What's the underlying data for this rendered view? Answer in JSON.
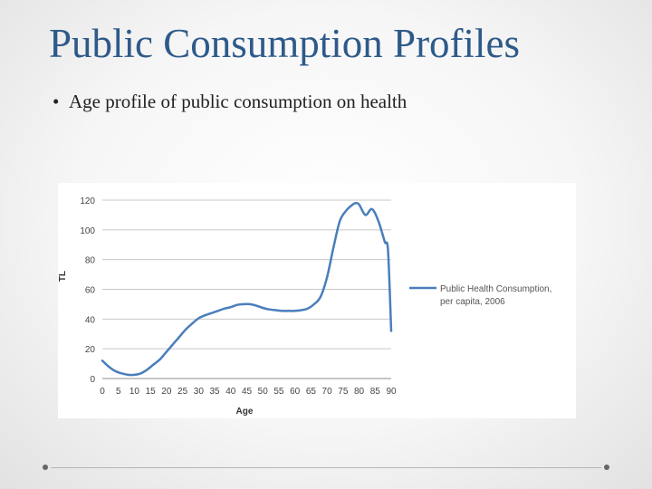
{
  "slide": {
    "title": "Public Consumption Profiles",
    "bullets": [
      "Age profile of public consumption on health"
    ]
  },
  "chart_data": {
    "type": "line",
    "xlabel": "Age",
    "ylabel": "TL",
    "xlim": [
      0,
      90
    ],
    "ylim": [
      0,
      120
    ],
    "x_ticks": [
      0,
      5,
      10,
      15,
      20,
      25,
      30,
      35,
      40,
      45,
      50,
      55,
      60,
      65,
      70,
      75,
      80,
      85,
      90
    ],
    "y_ticks": [
      0,
      20,
      40,
      60,
      80,
      100,
      120
    ],
    "grid": "horizontal",
    "legend_position": "right",
    "series": [
      {
        "name": "Public Health Consumption, per capita, 2006",
        "color": "#4a7ebb",
        "x": [
          0,
          2,
          4,
          6,
          8,
          10,
          12,
          14,
          16,
          18,
          20,
          22,
          24,
          26,
          28,
          30,
          32,
          34,
          36,
          38,
          40,
          42,
          44,
          46,
          48,
          50,
          52,
          54,
          56,
          58,
          60,
          62,
          64,
          66,
          68,
          70,
          72,
          74,
          76,
          78,
          79,
          80,
          82,
          84,
          86,
          88,
          89,
          90
        ],
        "values": [
          12,
          8,
          5,
          3.5,
          2.5,
          2.5,
          3.5,
          6,
          9.5,
          13,
          18,
          23,
          28,
          33,
          37,
          40.5,
          42.5,
          44,
          45.5,
          47,
          48,
          49.5,
          50,
          50,
          49,
          47.5,
          46.5,
          46,
          45.5,
          45.5,
          45.5,
          46,
          47,
          50,
          55,
          68,
          88,
          106,
          113,
          117,
          118,
          117,
          110,
          114,
          106,
          92,
          86,
          32
        ]
      }
    ]
  }
}
